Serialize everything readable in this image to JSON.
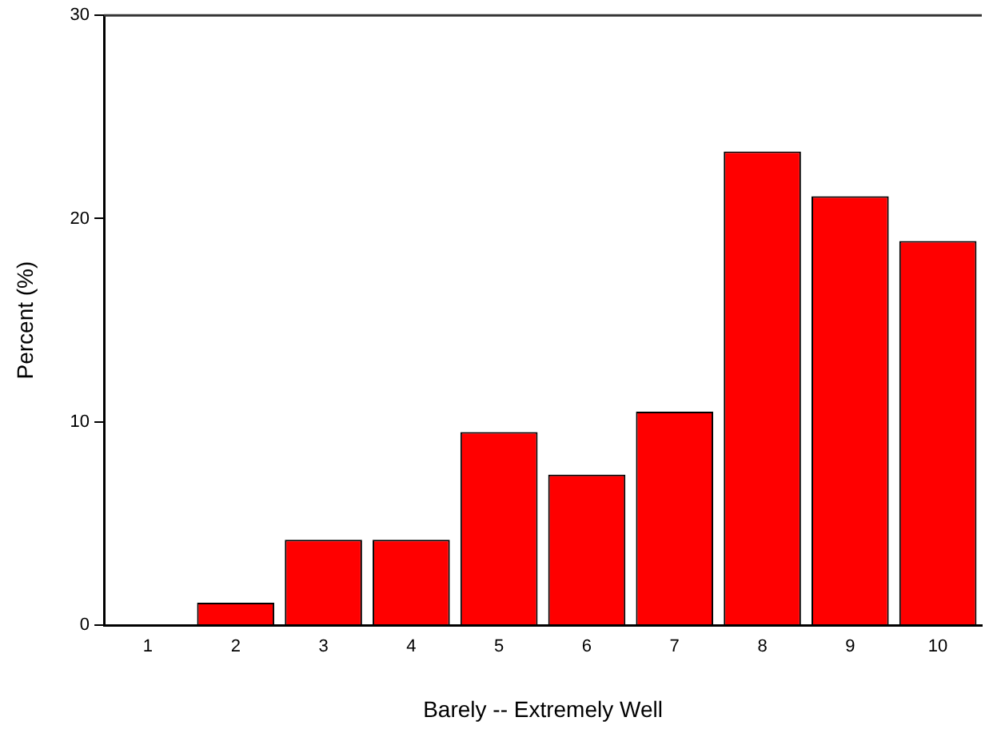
{
  "chart_data": {
    "type": "bar",
    "xlabel": "Barely -- Extremely Well",
    "ylabel": "Percent (%)",
    "categories": [
      "1",
      "2",
      "3",
      "4",
      "5",
      "6",
      "7",
      "8",
      "9",
      "10"
    ],
    "values": [
      0,
      1.1,
      4.2,
      4.2,
      9.5,
      7.4,
      10.5,
      23.3,
      21.1,
      18.9
    ],
    "color": "#ff0000",
    "ylim": [
      0,
      30
    ],
    "yticks": [
      0,
      10,
      20,
      30
    ],
    "grid": false,
    "legend": false
  }
}
